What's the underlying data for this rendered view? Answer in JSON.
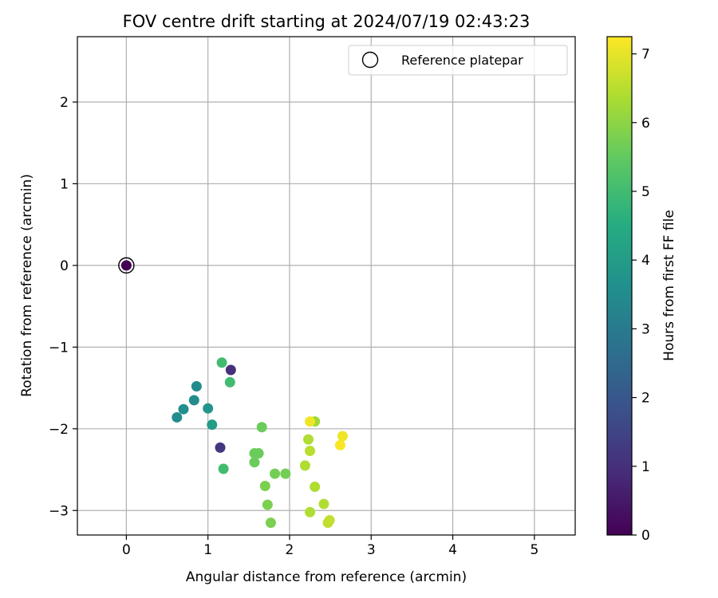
{
  "chart_data": {
    "type": "scatter",
    "title": "FOV centre drift starting at 2024/07/19 02:43:23",
    "xlabel": "Angular distance from reference (arcmin)",
    "ylabel": "Rotation from reference (arcmin)",
    "xlim": [
      -0.6,
      5.5
    ],
    "ylim": [
      -3.3,
      2.8
    ],
    "xticks": [
      0,
      1,
      2,
      3,
      4,
      5
    ],
    "yticks": [
      -3,
      -2,
      -1,
      0,
      1,
      2
    ],
    "grid": true,
    "legend": {
      "placement": "top-right",
      "entries": [
        "Reference platepar"
      ]
    },
    "reference_point": {
      "label": "Reference platepar",
      "x": 0,
      "y": 0
    },
    "colorbar": {
      "label": "Hours from first FF file",
      "range": [
        0,
        7.25
      ],
      "ticks": [
        0,
        1,
        2,
        3,
        4,
        5,
        6,
        7
      ],
      "colormap": "viridis"
    },
    "points": [
      {
        "x": 0.0,
        "y": 0.0,
        "hours": 0.0
      },
      {
        "x": 1.28,
        "y": -1.28,
        "hours": 1.0
      },
      {
        "x": 1.15,
        "y": -2.23,
        "hours": 1.2
      },
      {
        "x": 0.62,
        "y": -1.86,
        "hours": 3.5
      },
      {
        "x": 0.7,
        "y": -1.76,
        "hours": 3.6
      },
      {
        "x": 0.83,
        "y": -1.65,
        "hours": 3.5
      },
      {
        "x": 0.86,
        "y": -1.48,
        "hours": 3.5
      },
      {
        "x": 1.0,
        "y": -1.75,
        "hours": 3.8
      },
      {
        "x": 1.05,
        "y": -1.95,
        "hours": 4.0
      },
      {
        "x": 1.17,
        "y": -1.19,
        "hours": 5.0
      },
      {
        "x": 1.27,
        "y": -1.43,
        "hours": 5.0
      },
      {
        "x": 1.19,
        "y": -2.49,
        "hours": 5.0
      },
      {
        "x": 1.66,
        "y": -1.98,
        "hours": 5.6
      },
      {
        "x": 1.57,
        "y": -2.3,
        "hours": 5.6
      },
      {
        "x": 1.62,
        "y": -2.3,
        "hours": 5.6
      },
      {
        "x": 1.57,
        "y": -2.41,
        "hours": 5.6
      },
      {
        "x": 1.82,
        "y": -2.55,
        "hours": 5.7
      },
      {
        "x": 1.95,
        "y": -2.55,
        "hours": 5.7
      },
      {
        "x": 1.7,
        "y": -2.7,
        "hours": 5.8
      },
      {
        "x": 1.73,
        "y": -2.93,
        "hours": 5.8
      },
      {
        "x": 1.77,
        "y": -3.15,
        "hours": 5.8
      },
      {
        "x": 2.31,
        "y": -1.91,
        "hours": 6.2
      },
      {
        "x": 2.25,
        "y": -1.91,
        "hours": 7.1
      },
      {
        "x": 2.23,
        "y": -2.13,
        "hours": 6.4
      },
      {
        "x": 2.25,
        "y": -2.27,
        "hours": 6.5
      },
      {
        "x": 2.19,
        "y": -2.45,
        "hours": 6.4
      },
      {
        "x": 2.31,
        "y": -2.71,
        "hours": 6.4
      },
      {
        "x": 2.42,
        "y": -2.92,
        "hours": 6.4
      },
      {
        "x": 2.25,
        "y": -3.02,
        "hours": 6.4
      },
      {
        "x": 2.49,
        "y": -3.12,
        "hours": 6.6
      },
      {
        "x": 2.47,
        "y": -3.15,
        "hours": 6.6
      },
      {
        "x": 2.65,
        "y": -2.09,
        "hours": 7.1
      },
      {
        "x": 2.62,
        "y": -2.2,
        "hours": 7.2
      }
    ]
  }
}
